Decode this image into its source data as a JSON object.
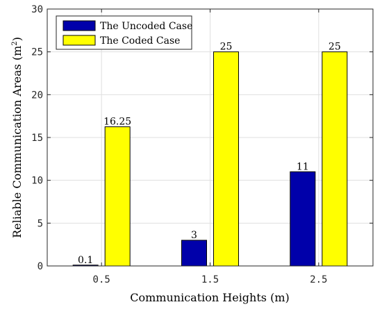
{
  "chart_data": {
    "type": "bar",
    "categories": [
      "0.5",
      "1.5",
      "2.5"
    ],
    "series": [
      {
        "name": "The Uncoded Case",
        "values": [
          0.1,
          3,
          11
        ],
        "labels": [
          "0.1",
          "3",
          "11"
        ],
        "color": "#0000aa"
      },
      {
        "name": "The Coded Case",
        "values": [
          16.25,
          25,
          25
        ],
        "labels": [
          "16.25",
          "25",
          "25"
        ],
        "color": "#ffff00"
      }
    ],
    "xlabel": "Communication Heights (m)",
    "ylabel_text": "Reliable Communication Areas (m",
    "ylabel_sup": "2",
    "ylabel_tail": ")",
    "ylim": [
      0,
      30
    ],
    "yticks": [
      0,
      5,
      10,
      15,
      20,
      25,
      30
    ],
    "grid": true,
    "legend_position": "top-left"
  }
}
